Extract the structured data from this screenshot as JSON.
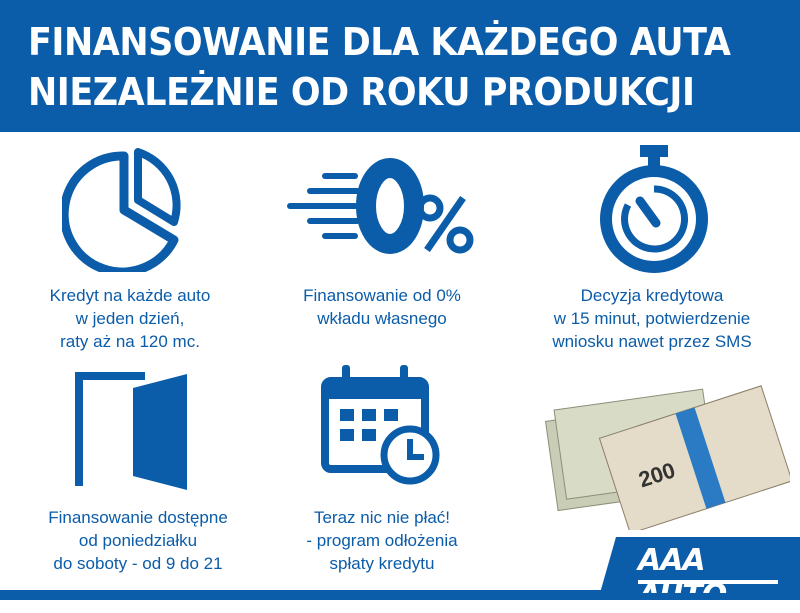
{
  "header": {
    "line1": "FINANSOWANIE DLA KAŻDEGO AUTA",
    "line2": "NIEZALEŻNIE OD ROKU PRODUKCJI"
  },
  "features": [
    {
      "icon": "pie-chart-icon",
      "lines": [
        "Kredyt na każde auto",
        "w jeden dzień,",
        "raty aż na 120 mc."
      ]
    },
    {
      "icon": "zero-percent-icon",
      "lines": [
        "Finansowanie od 0%",
        "wkładu własnego"
      ]
    },
    {
      "icon": "stopwatch-icon",
      "lines": [
        "Decyzja kredytowa",
        "w 15 minut, potwierdzenie",
        "wniosku nawet przez SMS"
      ]
    },
    {
      "icon": "open-door-icon",
      "lines": [
        "Finansowanie dostępne",
        "od poniedziałku",
        "do soboty - od 9 do 21"
      ]
    },
    {
      "icon": "calendar-clock-icon",
      "lines": [
        "Teraz nic nie płać!",
        "- program odłożenia",
        "spłaty kredytu"
      ]
    }
  ],
  "money_image": {
    "icon": "banknotes-icon",
    "denomination": "200"
  },
  "logo": {
    "text": "AAA AUTO"
  },
  "colors": {
    "brand_blue": "#0b5ca9"
  }
}
